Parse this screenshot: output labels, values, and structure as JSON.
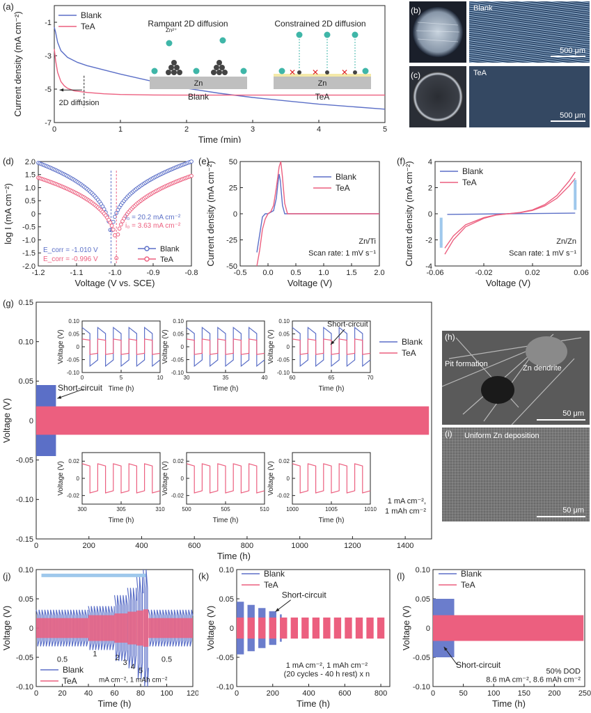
{
  "colors": {
    "blank": "#5b6fc7",
    "tea": "#ec5f7f",
    "arrow": "#9fc8ec"
  },
  "chart_data": [
    {
      "id": "a",
      "label": "(a)",
      "type": "line",
      "xlabel": "Time (min)",
      "ylabel": "Current density (mA cm⁻²)",
      "xlim": [
        0,
        5
      ],
      "ylim": [
        -7,
        0
      ],
      "xticks": [
        "0",
        "1",
        "2",
        "3",
        "4",
        "5"
      ],
      "yticks": [
        "-1",
        "-3",
        "-5",
        "-7"
      ],
      "series": [
        {
          "name": "Blank",
          "x": [
            0,
            0.02,
            0.05,
            0.1,
            0.2,
            0.35,
            0.5,
            0.75,
            1,
            1.5,
            2,
            2.5,
            3,
            3.5,
            4,
            4.5,
            5
          ],
          "values": [
            -1.3,
            -1.6,
            -2.2,
            -2.7,
            -3.1,
            -3.4,
            -3.6,
            -3.85,
            -4.1,
            -4.55,
            -4.95,
            -5.25,
            -5.5,
            -5.7,
            -5.9,
            -6.05,
            -6.2
          ]
        },
        {
          "name": "TeA",
          "x": [
            0,
            0.02,
            0.05,
            0.1,
            0.15,
            0.2,
            0.3,
            0.5,
            0.75,
            1,
            1.5,
            2,
            3,
            4,
            5
          ],
          "values": [
            -2.6,
            -3.3,
            -4.0,
            -4.55,
            -4.8,
            -4.95,
            -5.1,
            -5.2,
            -5.28,
            -5.32,
            -5.35,
            -5.36,
            -5.36,
            -5.36,
            -5.36
          ]
        }
      ],
      "legend": [
        "Blank",
        "TeA"
      ],
      "annotations": [
        "2D diffusion"
      ],
      "inset": {
        "left_title": "Rampant 2D diffusion",
        "right_title": "Constrained 2D diffusion",
        "left_substrate": "Zn",
        "right_substrate": "Zn",
        "left_label": "Blank",
        "right_label": "TeA",
        "ion": "Zn²⁺"
      }
    },
    {
      "id": "d",
      "label": "(d)",
      "type": "scatter",
      "xlabel": "Voltage (V vs. SCE)",
      "ylabel": "log I (mA cm⁻²)",
      "xlim": [
        -1.2,
        -0.8
      ],
      "ylim": [
        -2.0,
        2.0
      ],
      "xticks": [
        "-1.2",
        "-1.1",
        "-1.0",
        "-0.9",
        "-0.8"
      ],
      "yticks": [
        "2.0",
        "1.5",
        "1.0",
        "0.5",
        "0",
        "-0.5",
        "-1.0",
        "-1.5",
        "-2.0"
      ],
      "series": [
        {
          "name": "Blank",
          "ecorr": -1.01,
          "logi_anodic_at_-0.8": 2.0,
          "logi_cathodic_at_-1.2": 1.95,
          "min_logi": -1.4
        },
        {
          "name": "TeA",
          "ecorr": -0.996,
          "logi_anodic_at_-0.8": 1.45,
          "logi_cathodic_at_-1.2": 1.38,
          "min_logi": -1.7
        }
      ],
      "annotations": [
        "i₀ = 20.2 mA cm⁻²",
        "i₀ = 3.63 mA cm⁻²",
        "E_corr = -1.010 V",
        "E_corr = -0.996 V"
      ],
      "legend": [
        "Blank",
        "TeA"
      ]
    },
    {
      "id": "e",
      "label": "(e)",
      "type": "line",
      "xlabel": "Voltage (V)",
      "ylabel": "Current density (mA cm⁻²)",
      "xlim": [
        -0.5,
        2.0
      ],
      "ylim": [
        -50,
        50
      ],
      "xticks": [
        "-0.5",
        "0.0",
        "0.5",
        "1.0",
        "1.5",
        "2.0"
      ],
      "yticks": [
        "50",
        "25",
        "0",
        "-25",
        "-50"
      ],
      "series": [
        {
          "name": "Blank",
          "x": [
            -0.2,
            -0.15,
            -0.1,
            -0.05,
            0.0,
            0.1,
            0.15,
            0.18,
            0.2,
            0.22,
            0.26,
            0.3,
            0.5,
            1.0,
            2.0
          ],
          "values": [
            -37,
            -20,
            -3,
            0,
            0,
            3,
            15,
            30,
            38,
            32,
            8,
            0,
            0,
            0,
            0
          ]
        },
        {
          "name": "TeA",
          "x": [
            -0.2,
            -0.15,
            -0.1,
            -0.05,
            0.0,
            0.05,
            0.1,
            0.15,
            0.2,
            0.23,
            0.26,
            0.3,
            0.35,
            0.5,
            1.0,
            2.0
          ],
          "values": [
            -50,
            -35,
            -15,
            -5,
            0,
            2,
            8,
            25,
            45,
            50,
            35,
            10,
            0,
            0,
            0,
            0
          ]
        }
      ],
      "annotations": [
        "Zn/Ti",
        "Scan rate: 1 mV s⁻¹"
      ],
      "legend": [
        "Blank",
        "TeA"
      ]
    },
    {
      "id": "f",
      "label": "(f)",
      "type": "line",
      "xlabel": "Voltage (V)",
      "ylabel": "Current density (mA cm⁻²)",
      "xlim": [
        -0.06,
        0.06
      ],
      "ylim": [
        -4,
        4
      ],
      "xticks": [
        "-0.06",
        "-0.02",
        "0.02",
        "0.06"
      ],
      "yticks": [
        "4",
        "2",
        "0",
        "-2",
        "-4"
      ],
      "series": [
        {
          "name": "Blank",
          "x": [
            -0.05,
            0.0,
            0.055
          ],
          "values": [
            -0.05,
            0.0,
            0.05
          ]
        },
        {
          "name": "TeA",
          "x": [
            -0.052,
            -0.045,
            -0.035,
            -0.02,
            -0.01,
            0.0,
            0.01,
            0.02,
            0.03,
            0.04,
            0.05,
            0.055
          ],
          "values": [
            -3.1,
            -2.0,
            -1.0,
            -0.35,
            -0.1,
            0.0,
            0.1,
            0.3,
            0.7,
            1.4,
            2.5,
            3.2
          ]
        }
      ],
      "annotations": [
        "Zn/Zn",
        "Scan rate: 1 mV s⁻¹"
      ],
      "legend": [
        "Blank",
        "TeA"
      ]
    },
    {
      "id": "g",
      "label": "(g)",
      "type": "line",
      "xlabel": "Time (h)",
      "ylabel": "Voltage (V)",
      "xlim": [
        0,
        1500
      ],
      "ylim": [
        -0.15,
        0.15
      ],
      "xticks": [
        "0",
        "200",
        "400",
        "600",
        "800",
        "1000",
        "1200",
        "1400"
      ],
      "yticks": [
        "0.15",
        "0.10",
        "0.05",
        "0",
        "-0.05",
        "-0.10",
        "-0.15"
      ],
      "series": [
        {
          "name": "Blank",
          "end_h": 75,
          "amplitude_V": 0.045,
          "short_circuit_h": 75
        },
        {
          "name": "TeA",
          "end_h": 1490,
          "amplitude_V": 0.018
        }
      ],
      "annotations": [
        "Short-circuit",
        "1 mA cm⁻², 1 mAh cm⁻²"
      ],
      "legend": [
        "Blank",
        "TeA"
      ],
      "insets": [
        {
          "xlim": [
            0,
            10
          ],
          "xticks": [
            "0",
            "5",
            "10"
          ],
          "yticks": [
            "0.10",
            "0.05",
            "0",
            "-0.05",
            "-0.10"
          ],
          "ylim": [
            -0.1,
            0.1
          ],
          "xlabel": "Time (h)",
          "ylabel": "Voltage (V)",
          "blank_amp": 0.06,
          "tea_amp": 0.03
        },
        {
          "xlim": [
            30,
            40
          ],
          "xticks": [
            "30",
            "35",
            "40"
          ],
          "yticks": [
            "0.10",
            "0.05",
            "0",
            "-0.05",
            "-0.10"
          ],
          "ylim": [
            -0.1,
            0.1
          ],
          "xlabel": "Time (h)",
          "ylabel": "Voltage (V)",
          "blank_amp": 0.06,
          "tea_amp": 0.03
        },
        {
          "xlim": [
            60,
            70
          ],
          "xticks": [
            "60",
            "65",
            "70"
          ],
          "yticks": [
            "0.10",
            "0.05",
            "0",
            "-0.05",
            "-0.10"
          ],
          "ylim": [
            -0.1,
            0.1
          ],
          "xlabel": "Time (h)",
          "ylabel": "Voltage (V)",
          "blank_amp": 0.06,
          "tea_amp": 0.03,
          "annotation": "Short-circuit"
        },
        {
          "xlim": [
            300,
            310
          ],
          "xticks": [
            "300",
            "305",
            "310"
          ],
          "yticks": [
            "0.02",
            "0",
            "-0.02"
          ],
          "ylim": [
            -0.03,
            0.03
          ],
          "xlabel": "Time (h)",
          "ylabel": "Voltage (V)",
          "tea_amp": 0.017
        },
        {
          "xlim": [
            500,
            510
          ],
          "xticks": [
            "500",
            "505",
            "510"
          ],
          "yticks": [
            "0.02",
            "0",
            "-0.02"
          ],
          "ylim": [
            -0.03,
            0.03
          ],
          "xlabel": "Time (h)",
          "ylabel": "Voltage (V)",
          "tea_amp": 0.017
        },
        {
          "xlim": [
            1000,
            1010
          ],
          "xticks": [
            "1000",
            "1005",
            "1010"
          ],
          "yticks": [
            "0.02",
            "0",
            "-0.02"
          ],
          "ylim": [
            -0.03,
            0.03
          ],
          "xlabel": "Time (h)",
          "ylabel": "Voltage (V)",
          "tea_amp": 0.017
        }
      ]
    },
    {
      "id": "j",
      "label": "(j)",
      "type": "line",
      "xlabel": "Time (h)",
      "ylabel": "Voltage (V)",
      "xlim": [
        0,
        120
      ],
      "ylim": [
        -0.1,
        0.1
      ],
      "xticks": [
        "0",
        "20",
        "40",
        "60",
        "80",
        "100",
        "120"
      ],
      "yticks": [
        "0.10",
        "0.05",
        "0",
        "-0.05",
        "-0.10"
      ],
      "rate_steps": [
        {
          "current": "0.5",
          "start_h": 0,
          "end_h": 40,
          "blank_amp": 0.025,
          "tea_amp": 0.017
        },
        {
          "current": "1",
          "start_h": 40,
          "end_h": 60,
          "blank_amp": 0.03,
          "tea_amp": 0.022
        },
        {
          "current": "2",
          "start_h": 60,
          "end_h": 70,
          "blank_amp": 0.045,
          "tea_amp": 0.025
        },
        {
          "current": "3",
          "start_h": 70,
          "end_h": 77,
          "blank_amp": 0.055,
          "tea_amp": 0.028
        },
        {
          "current": "4",
          "start_h": 77,
          "end_h": 82,
          "blank_amp": 0.07,
          "tea_amp": 0.03
        },
        {
          "current": "5",
          "start_h": 82,
          "end_h": 86,
          "blank_amp": 0.08,
          "tea_amp": 0.032
        },
        {
          "current": "0.5",
          "start_h": 86,
          "end_h": 120,
          "blank_amp": 0.025,
          "tea_amp": 0.017
        }
      ],
      "annotations": [
        "mA cm⁻², 1 mAh cm⁻²"
      ],
      "legend": [
        "Blank",
        "TeA"
      ]
    },
    {
      "id": "k",
      "label": "(k)",
      "type": "line",
      "xlabel": "Time (h)",
      "ylabel": "Voltage (V)",
      "xlim": [
        0,
        850
      ],
      "ylim": [
        -0.1,
        0.1
      ],
      "xticks": [
        "0",
        "200",
        "400",
        "600",
        "800"
      ],
      "yticks": [
        "0.10",
        "0.05",
        "0",
        "-0.05",
        "-0.10"
      ],
      "series": [
        {
          "name": "Blank",
          "blocks_h": [
            [
              0,
              40
            ],
            [
              60,
              100
            ],
            [
              120,
              160
            ],
            [
              180,
              220
            ],
            [
              240,
              250
            ]
          ],
          "amp_V": 0.045
        },
        {
          "name": "TeA",
          "block_period_h": 60,
          "block_len_h": 40,
          "end_h": 830,
          "amp_V": 0.018
        }
      ],
      "annotations": [
        "Short-circuit",
        "1 mA cm⁻², 1 mAh cm⁻²",
        "(20 cycles - 40 h rest) x n"
      ],
      "legend": [
        "Blank",
        "TeA"
      ]
    },
    {
      "id": "l",
      "label": "(l)",
      "type": "line",
      "xlabel": "Time (h)",
      "ylabel": "Voltage (V)",
      "xlim": [
        0,
        250
      ],
      "ylim": [
        -0.1,
        0.1
      ],
      "xticks": [
        "0",
        "50",
        "100",
        "150",
        "200",
        "250"
      ],
      "yticks": [
        "0.10",
        "0.05",
        "0",
        "-0.05",
        "-0.10"
      ],
      "series": [
        {
          "name": "Blank",
          "end_h": 35,
          "amp_V": 0.05,
          "short_circuit_h": 35
        },
        {
          "name": "TeA",
          "end_h": 248,
          "amp_V": 0.022
        }
      ],
      "annotations": [
        "Short-circuit",
        "50% DOD",
        "8.6 mA cm⁻², 8.6 mAh cm⁻²"
      ],
      "legend": [
        "Blank",
        "TeA"
      ]
    }
  ],
  "photos": {
    "b": {
      "label": "(b)",
      "caption": "Blank",
      "scale": "500 μm"
    },
    "c": {
      "label": "(c)",
      "caption": "TeA",
      "scale": "500 μm"
    },
    "h": {
      "label": "(h)",
      "labels": [
        "Pit formation",
        "Zn dendrite"
      ],
      "scale": "50 μm"
    },
    "i": {
      "label": "(i)",
      "caption": "Uniform Zn deposition",
      "scale": "50 μm"
    }
  }
}
